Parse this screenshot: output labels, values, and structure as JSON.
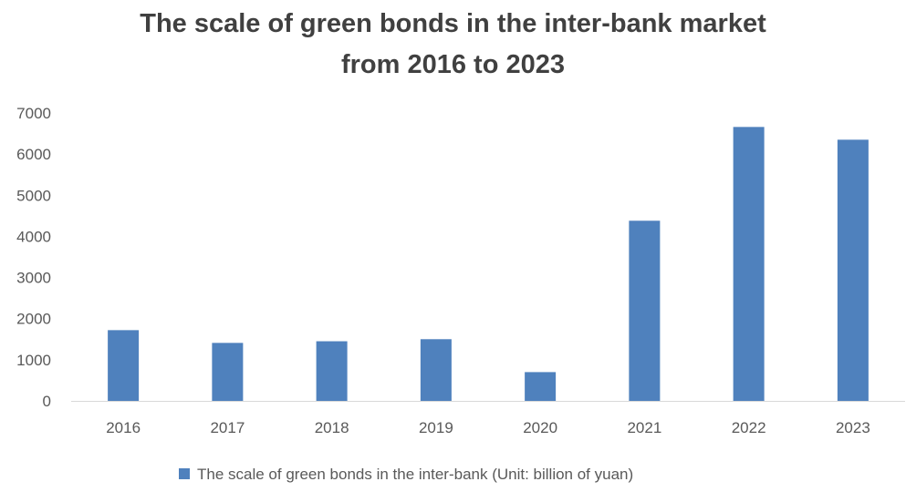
{
  "chart_data": {
    "type": "bar",
    "title_line1": "The scale of green bonds in the inter-bank market",
    "title_line2": "from 2016 to 2023",
    "categories": [
      "2016",
      "2017",
      "2018",
      "2019",
      "2020",
      "2021",
      "2022",
      "2023"
    ],
    "series": [
      {
        "name": "The scale of green bonds in the inter-bank (Unit: billion of yuan)",
        "values": [
          1720,
          1410,
          1450,
          1500,
          700,
          4380,
          6660,
          6350
        ],
        "color": "#4f81bd"
      }
    ],
    "ylim": [
      0,
      7000
    ],
    "yticks": [
      "0",
      "1000",
      "2000",
      "3000",
      "4000",
      "5000",
      "6000",
      "7000"
    ],
    "grid": false,
    "legend_position": "bottom"
  }
}
